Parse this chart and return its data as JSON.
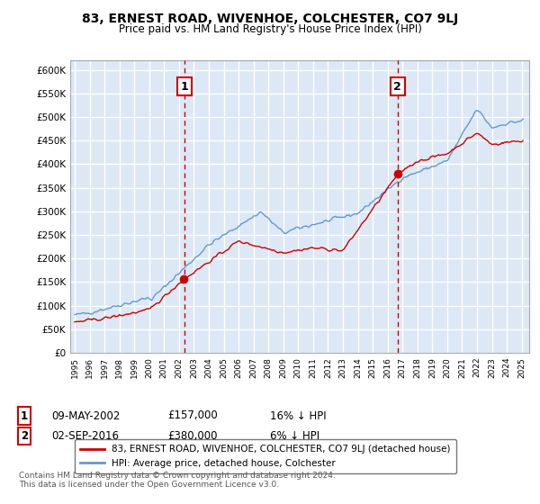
{
  "title": "83, ERNEST ROAD, WIVENHOE, COLCHESTER, CO7 9LJ",
  "subtitle": "Price paid vs. HM Land Registry's House Price Index (HPI)",
  "ylabel_ticks": [
    "£0",
    "£50K",
    "£100K",
    "£150K",
    "£200K",
    "£250K",
    "£300K",
    "£350K",
    "£400K",
    "£450K",
    "£500K",
    "£550K",
    "£600K"
  ],
  "ylim": [
    0,
    620000
  ],
  "ytick_vals": [
    0,
    50000,
    100000,
    150000,
    200000,
    250000,
    300000,
    350000,
    400000,
    450000,
    500000,
    550000,
    600000
  ],
  "plot_bg": "#dce8f5",
  "grid_color": "#ffffff",
  "sale1_date": 2002.36,
  "sale1_price": 157000,
  "sale1_label": "1",
  "sale2_date": 2016.67,
  "sale2_price": 380000,
  "sale2_label": "2",
  "legend_line1": "83, ERNEST ROAD, WIVENHOE, COLCHESTER, CO7 9LJ (detached house)",
  "legend_line2": "HPI: Average price, detached house, Colchester",
  "annotation1": [
    "1",
    "09-MAY-2002",
    "£157,000",
    "16% ↓ HPI"
  ],
  "annotation2": [
    "2",
    "02-SEP-2016",
    "£380,000",
    "6% ↓ HPI"
  ],
  "footnote": "Contains HM Land Registry data © Crown copyright and database right 2024.\nThis data is licensed under the Open Government Licence v3.0.",
  "line_color_red": "#cc0000",
  "line_color_blue": "#6699cc"
}
